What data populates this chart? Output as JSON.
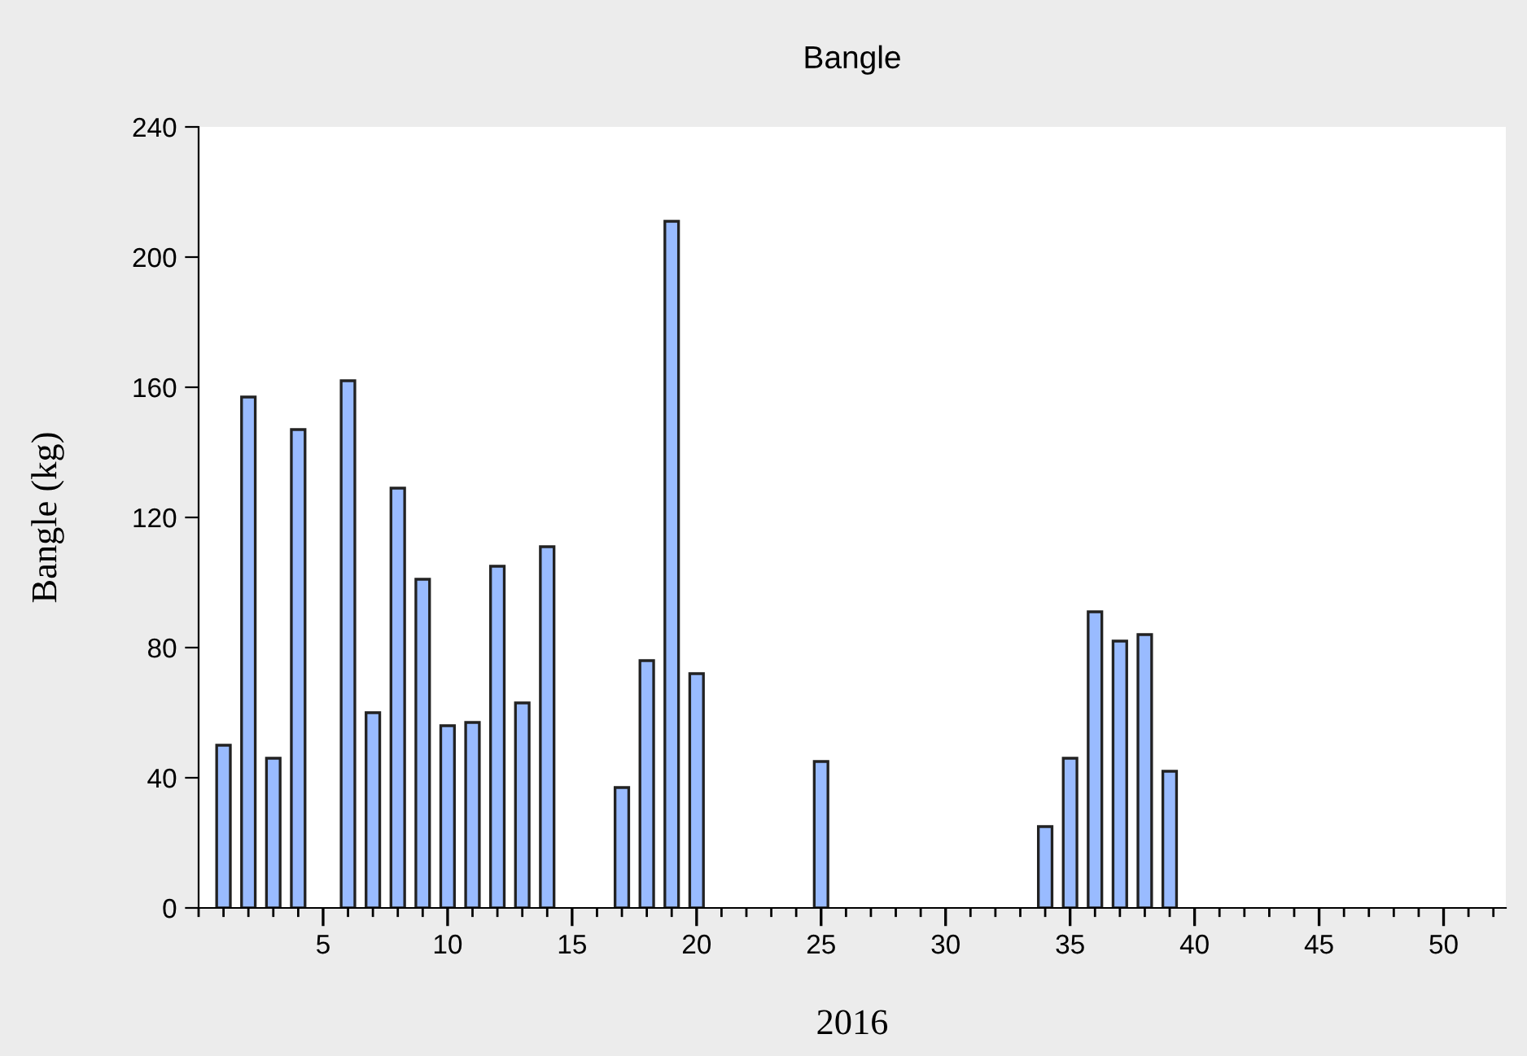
{
  "chart_data": {
    "type": "bar",
    "title": "Bangle",
    "xlabel": "2016",
    "ylabel": "Bangle (kg)",
    "x": [
      1,
      2,
      3,
      4,
      6,
      7,
      8,
      9,
      10,
      11,
      12,
      13,
      14,
      17,
      18,
      19,
      20,
      25,
      34,
      35,
      36,
      37,
      38,
      39
    ],
    "values": [
      50,
      157,
      46,
      147,
      162,
      60,
      129,
      101,
      56,
      57,
      105,
      63,
      111,
      37,
      76,
      211,
      72,
      45,
      25,
      46,
      91,
      82,
      84,
      42
    ],
    "color": "#99bbff",
    "xlim": [
      0,
      52.5
    ],
    "xticks": [
      5,
      10,
      15,
      20,
      25,
      30,
      35,
      40,
      45,
      50
    ],
    "ylim": [
      0,
      240
    ],
    "yticks": [
      0,
      40,
      80,
      120,
      160,
      200,
      240
    ],
    "grid": false,
    "legend": false
  }
}
